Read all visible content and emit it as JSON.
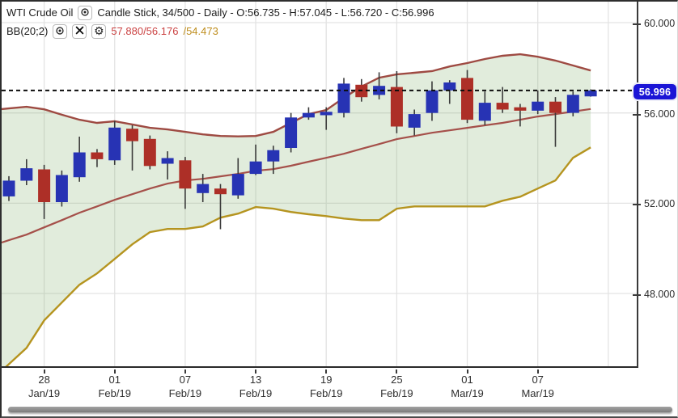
{
  "legend": {
    "row1": {
      "symbol": "WTI Crude Oil",
      "description": "Candle Stick, 34/500 - Daily - O:56.735 - H:57.045 - L:56.720 - C:56.996"
    },
    "row2": {
      "indicator": "BB(20;2)",
      "values_upper_middle": "57.880/56.176",
      "values_lower": "/54.473"
    }
  },
  "price_axis": {
    "ticks": [
      {
        "label": "60.000",
        "value": 60
      },
      {
        "label": "56.000",
        "value": 56
      },
      {
        "label": "52.000",
        "value": 52
      },
      {
        "label": "48.000",
        "value": 48
      }
    ],
    "last_price": "56.996"
  },
  "date_axis": {
    "ticks": [
      {
        "day": "28",
        "month": "Jan/19",
        "candle_index": 2
      },
      {
        "day": "01",
        "month": "Feb/19",
        "candle_index": 6
      },
      {
        "day": "07",
        "month": "Feb/19",
        "candle_index": 10
      },
      {
        "day": "13",
        "month": "Feb/19",
        "candle_index": 14
      },
      {
        "day": "19",
        "month": "Feb/19",
        "candle_index": 18
      },
      {
        "day": "25",
        "month": "Feb/19",
        "candle_index": 22
      },
      {
        "day": "01",
        "month": "Mar/19",
        "candle_index": 26
      },
      {
        "day": "07",
        "month": "Mar/19",
        "candle_index": 30
      }
    ],
    "extra_gridline_indices": [
      34
    ]
  },
  "chart_data": {
    "type": "candlestick",
    "title": "WTI Crude Oil",
    "interval": "Daily",
    "visible_range": "34/500",
    "ohlc_display": {
      "open": 56.735,
      "high": 57.045,
      "low": 56.72,
      "close": 56.996
    },
    "last_close": 56.996,
    "ylim": [
      44.78,
      60.93
    ],
    "yticks": [
      48,
      52,
      56,
      60
    ],
    "grid": true,
    "dates": [
      "2019-01-24",
      "2019-01-25",
      "2019-01-28",
      "2019-01-29",
      "2019-01-30",
      "2019-01-31",
      "2019-02-01",
      "2019-02-04",
      "2019-02-05",
      "2019-02-06",
      "2019-02-07",
      "2019-02-08",
      "2019-02-11",
      "2019-02-12",
      "2019-02-13",
      "2019-02-14",
      "2019-02-15",
      "2019-02-18",
      "2019-02-19",
      "2019-02-20",
      "2019-02-21",
      "2019-02-22",
      "2019-02-25",
      "2019-02-26",
      "2019-02-27",
      "2019-02-28",
      "2019-03-01",
      "2019-03-04",
      "2019-03-05",
      "2019-03-06",
      "2019-03-07",
      "2019-03-08",
      "2019-03-11",
      "2019-03-12"
    ],
    "candles_ohlc": [
      [
        52.3,
        53.2,
        52.1,
        53.0
      ],
      [
        53.0,
        53.95,
        52.8,
        53.55
      ],
      [
        53.5,
        53.7,
        51.3,
        52.05
      ],
      [
        52.05,
        53.45,
        51.85,
        53.25
      ],
      [
        53.15,
        54.95,
        52.95,
        54.25
      ],
      [
        54.25,
        54.4,
        53.6,
        53.95
      ],
      [
        53.9,
        55.65,
        53.7,
        55.35
      ],
      [
        55.3,
        55.45,
        53.45,
        54.75
      ],
      [
        54.85,
        55.0,
        53.5,
        53.65
      ],
      [
        53.75,
        54.3,
        53.05,
        54.0
      ],
      [
        53.9,
        54.05,
        51.75,
        52.65
      ],
      [
        52.45,
        53.3,
        52.05,
        52.85
      ],
      [
        52.65,
        52.85,
        50.85,
        52.4
      ],
      [
        52.35,
        54.0,
        52.2,
        53.3
      ],
      [
        53.3,
        54.6,
        53.25,
        53.85
      ],
      [
        53.85,
        54.55,
        53.3,
        54.35
      ],
      [
        54.45,
        56.0,
        54.25,
        55.8
      ],
      [
        55.8,
        56.25,
        55.7,
        56.0
      ],
      [
        55.9,
        56.25,
        55.25,
        56.05
      ],
      [
        56.0,
        57.55,
        55.8,
        57.3
      ],
      [
        57.25,
        57.5,
        56.5,
        56.7
      ],
      [
        56.8,
        57.8,
        56.6,
        57.2
      ],
      [
        57.15,
        57.85,
        55.1,
        55.4
      ],
      [
        55.35,
        56.15,
        55.0,
        55.95
      ],
      [
        56.0,
        57.4,
        55.65,
        57.0
      ],
      [
        57.0,
        57.45,
        56.4,
        57.35
      ],
      [
        57.55,
        57.9,
        55.55,
        55.7
      ],
      [
        55.65,
        56.95,
        55.45,
        56.45
      ],
      [
        56.45,
        57.15,
        56.0,
        56.15
      ],
      [
        56.25,
        56.4,
        55.4,
        56.1
      ],
      [
        56.1,
        57.0,
        55.95,
        56.5
      ],
      [
        56.5,
        56.7,
        54.5,
        56.0
      ],
      [
        56.0,
        56.95,
        55.85,
        56.8
      ],
      [
        56.735,
        57.045,
        56.72,
        56.996
      ]
    ],
    "bollinger": {
      "period": 20,
      "stdev": 2,
      "display": "57.880/56.176/54.473",
      "upper": [
        56.2,
        56.27,
        56.16,
        55.92,
        55.7,
        55.56,
        55.63,
        55.49,
        55.34,
        55.27,
        55.16,
        55.05,
        54.98,
        54.96,
        54.98,
        55.16,
        55.56,
        55.95,
        56.13,
        56.67,
        57.17,
        57.56,
        57.71,
        57.78,
        57.85,
        58.06,
        58.21,
        58.39,
        58.53,
        58.6,
        58.49,
        58.32,
        58.1,
        57.88
      ],
      "middle": [
        50.36,
        50.61,
        50.93,
        51.25,
        51.58,
        51.86,
        52.15,
        52.4,
        52.65,
        52.87,
        53.01,
        53.08,
        53.19,
        53.3,
        53.44,
        53.51,
        53.66,
        53.84,
        54.01,
        54.19,
        54.41,
        54.62,
        54.84,
        54.98,
        55.12,
        55.23,
        55.34,
        55.45,
        55.56,
        55.7,
        55.84,
        55.95,
        56.06,
        56.176
      ],
      "lower": [
        44.87,
        45.59,
        46.81,
        47.6,
        48.39,
        48.89,
        49.53,
        50.18,
        50.72,
        50.86,
        50.86,
        50.97,
        51.36,
        51.54,
        51.83,
        51.76,
        51.61,
        51.51,
        51.43,
        51.32,
        51.25,
        51.25,
        51.76,
        51.86,
        51.86,
        51.86,
        51.86,
        51.86,
        52.11,
        52.29,
        52.65,
        53.01,
        54.01,
        54.473
      ]
    },
    "colors": {
      "up_candle": "#2733b4",
      "down_candle": "#ad2f27",
      "wick": "#3a3a3a",
      "bb_upper_line": "#9e4a42",
      "bb_middle_line": "#a5504a",
      "bb_lower_line": "#b5941f",
      "bb_fill": "rgba(140,180,120,0.26)",
      "gridline": "#e3e3e3",
      "last_price_line": "#0d0d0d",
      "badge_bg": "#1b15d6",
      "bb_text_red": "#cb4343",
      "bb_text_yellow": "#bf8e1e"
    }
  }
}
